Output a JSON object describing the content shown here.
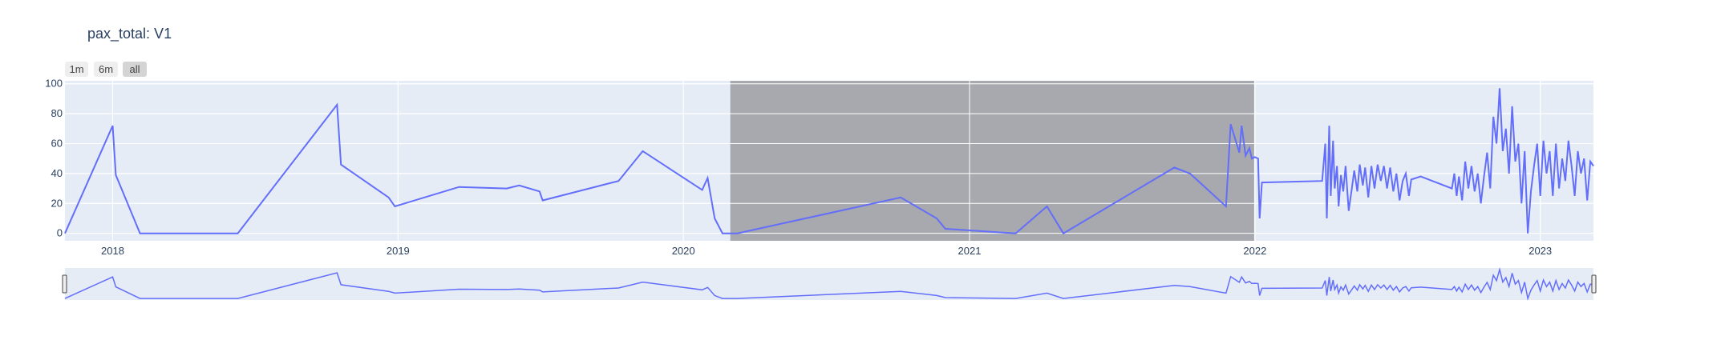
{
  "title": "pax_total: V1",
  "range_selector": {
    "buttons": [
      {
        "label": "1m",
        "active": false
      },
      {
        "label": "6m",
        "active": false
      },
      {
        "label": "all",
        "active": true
      }
    ]
  },
  "colors": {
    "plot_bg": "#e5ecf6",
    "line": "#636efa",
    "shape_fill": "#a0a2a6",
    "grid": "#ffffff",
    "text": "#2a3f5f"
  },
  "chart_data": {
    "type": "line",
    "title": "pax_total: V1",
    "xlabel": "",
    "ylabel": "",
    "xlim": [
      "2017-11-01",
      "2023-03-10"
    ],
    "ylim": [
      -5,
      102
    ],
    "x_ticks": [
      "2018",
      "2019",
      "2020",
      "2021",
      "2022",
      "2023"
    ],
    "y_ticks": [
      0,
      20,
      40,
      60,
      80,
      100
    ],
    "grid": true,
    "range_slider": true,
    "highlight_region": {
      "x0": "2020-03-01",
      "x1": "2021-12-31"
    },
    "series": [
      {
        "name": "",
        "x": [
          "2017-11-01",
          "2018-01-01",
          "2018-01-05",
          "2018-02-05",
          "2018-06-10",
          "2018-10-15",
          "2018-10-20",
          "2018-12-20",
          "2018-12-28",
          "2019-03-20",
          "2019-05-20",
          "2019-06-05",
          "2019-07-01",
          "2019-07-05",
          "2019-10-10",
          "2019-11-10",
          "2020-01-25",
          "2020-02-01",
          "2020-02-10",
          "2020-02-20",
          "2020-03-10",
          "2020-10-05",
          "2020-11-20",
          "2020-12-01",
          "2021-03-01",
          "2021-04-10",
          "2021-05-01",
          "2021-09-20",
          "2021-10-10",
          "2021-11-25",
          "2021-12-01",
          "2021-12-12",
          "2021-12-15",
          "2021-12-20",
          "2021-12-25",
          "2021-12-28",
          "2022-01-01",
          "2022-01-05",
          "2022-01-07",
          "2022-01-10",
          "2022-03-28",
          "2022-04-01",
          "2022-04-03",
          "2022-04-06",
          "2022-04-08",
          "2022-04-11",
          "2022-04-13",
          "2022-04-16",
          "2022-04-18",
          "2022-04-21",
          "2022-04-24",
          "2022-04-27",
          "2022-05-01",
          "2022-05-05",
          "2022-05-08",
          "2022-05-12",
          "2022-05-15",
          "2022-05-19",
          "2022-05-22",
          "2022-05-26",
          "2022-05-30",
          "2022-06-03",
          "2022-06-07",
          "2022-06-11",
          "2022-06-15",
          "2022-06-19",
          "2022-06-23",
          "2022-06-27",
          "2022-07-01",
          "2022-07-05",
          "2022-07-09",
          "2022-07-13",
          "2022-07-17",
          "2022-07-20",
          "2022-08-01",
          "2022-09-10",
          "2022-09-13",
          "2022-09-16",
          "2022-09-19",
          "2022-09-23",
          "2022-09-27",
          "2022-10-01",
          "2022-10-05",
          "2022-10-09",
          "2022-10-13",
          "2022-10-17",
          "2022-10-21",
          "2022-10-25",
          "2022-10-29",
          "2022-11-02",
          "2022-11-06",
          "2022-11-10",
          "2022-11-14",
          "2022-11-18",
          "2022-11-22",
          "2022-11-26",
          "2022-11-30",
          "2022-12-04",
          "2022-12-08",
          "2022-12-12",
          "2022-12-16",
          "2022-12-20",
          "2022-12-24",
          "2022-12-28",
          "2023-01-01",
          "2023-01-05",
          "2023-01-09",
          "2023-01-13",
          "2023-01-17",
          "2023-01-21",
          "2023-01-25",
          "2023-01-29",
          "2023-02-02",
          "2023-02-06",
          "2023-02-10",
          "2023-02-14",
          "2023-02-18",
          "2023-02-22",
          "2023-02-26",
          "2023-03-02",
          "2023-03-06",
          "2023-03-10"
        ],
        "y": [
          0,
          72,
          39,
          0,
          0,
          86,
          46,
          24,
          18,
          31,
          30,
          32,
          28,
          22,
          35,
          55,
          29,
          37,
          10,
          0,
          0,
          24,
          10,
          3,
          0,
          18,
          0,
          44,
          40,
          18,
          73,
          54,
          72,
          52,
          57,
          50,
          51,
          50,
          10,
          34,
          35,
          60,
          10,
          72,
          25,
          62,
          30,
          45,
          18,
          39,
          28,
          45,
          15,
          30,
          42,
          28,
          46,
          32,
          44,
          24,
          45,
          30,
          46,
          35,
          45,
          30,
          44,
          28,
          40,
          22,
          35,
          40,
          25,
          36,
          38,
          30,
          40,
          25,
          38,
          22,
          48,
          30,
          45,
          28,
          40,
          20,
          38,
          54,
          30,
          78,
          60,
          97,
          55,
          70,
          40,
          85,
          48,
          60,
          20,
          55,
          0,
          28,
          45,
          60,
          25,
          62,
          40,
          55,
          25,
          60,
          30,
          50,
          35,
          62,
          45,
          25,
          55,
          40,
          50,
          22,
          48,
          45
        ]
      }
    ]
  }
}
